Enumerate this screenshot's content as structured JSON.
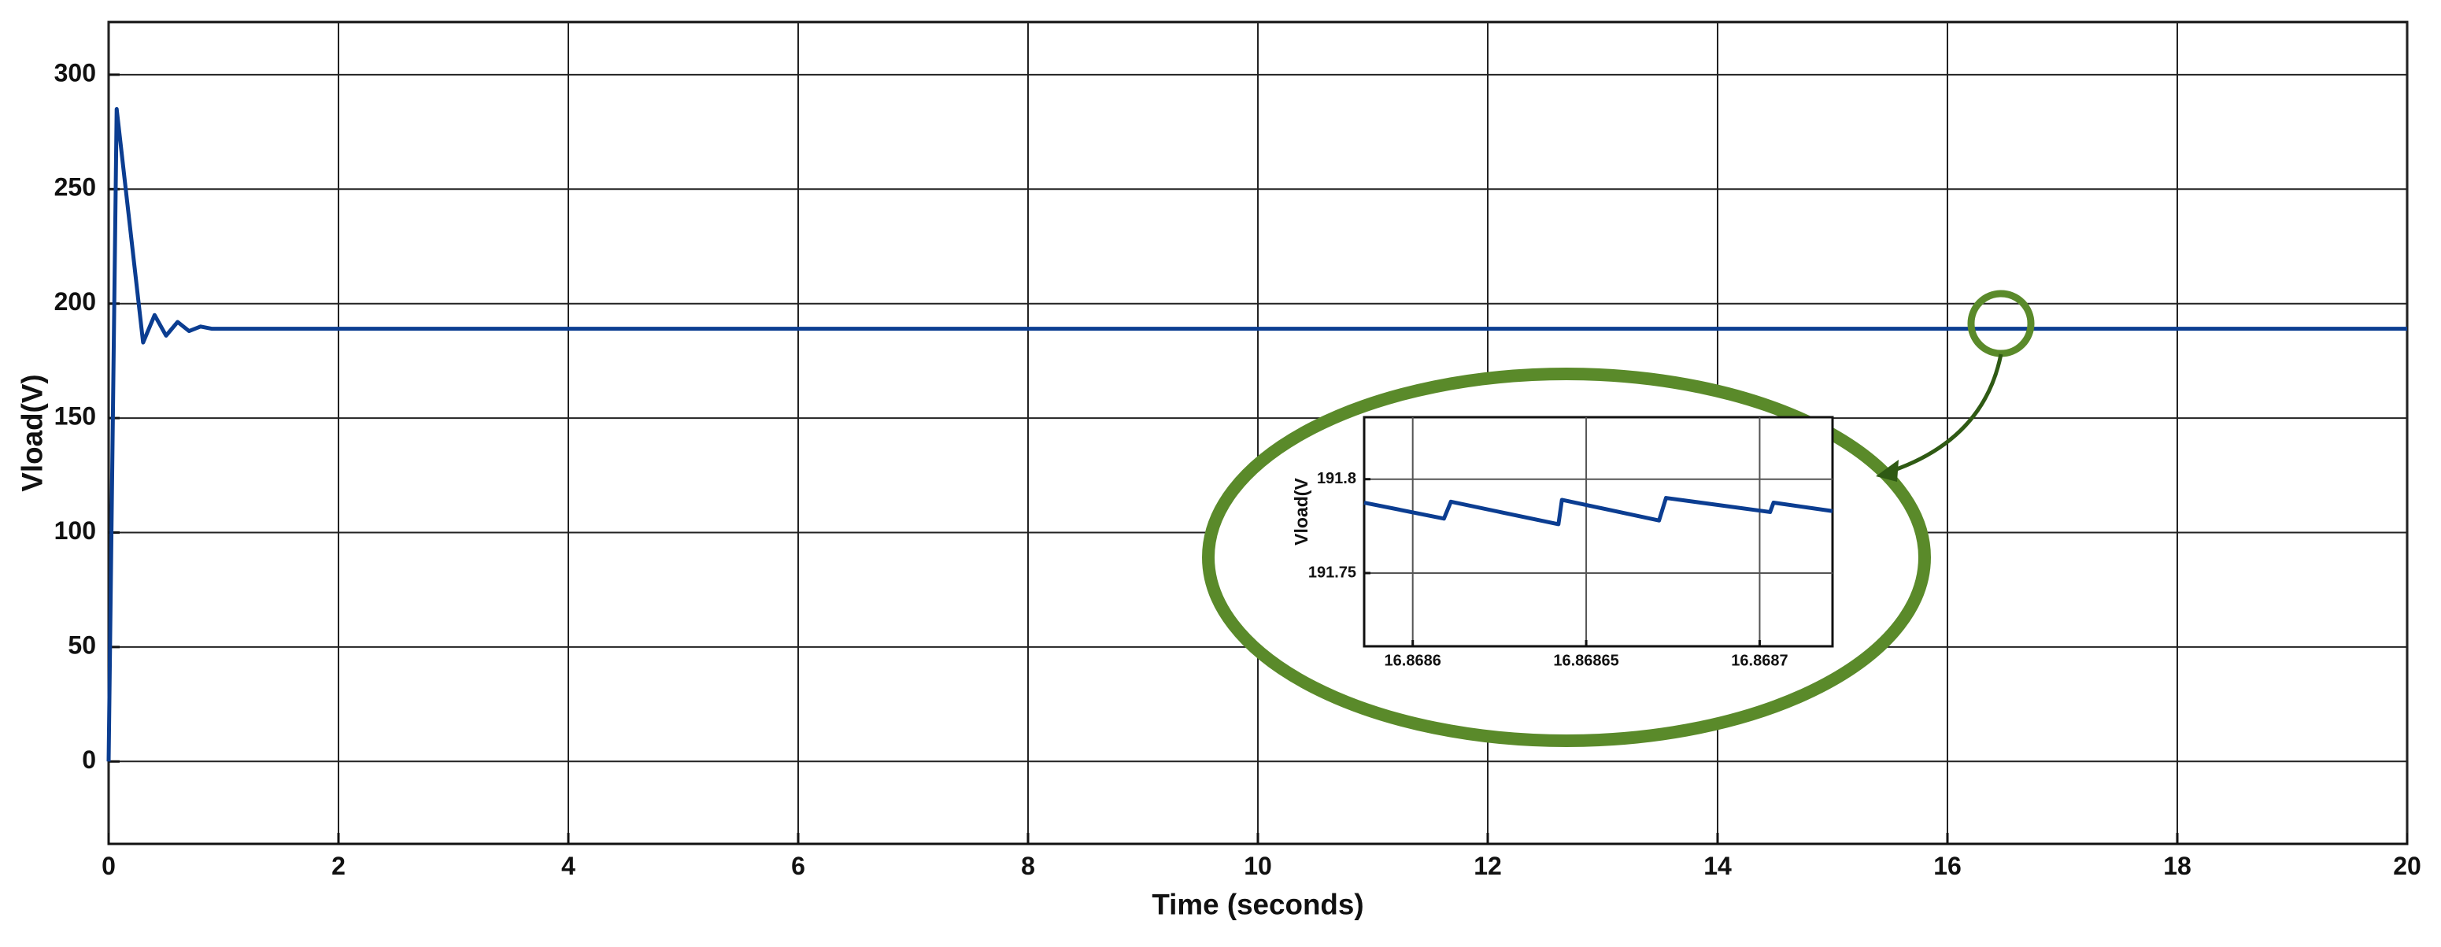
{
  "chart_data": [
    {
      "type": "line",
      "xlabel": "Time (seconds)",
      "ylabel": "Vload(V)",
      "x": [
        0,
        0.07,
        0.3,
        0.4,
        0.5,
        0.6,
        0.7,
        0.8,
        0.9,
        20
      ],
      "values": [
        0,
        285,
        183,
        195,
        186,
        192,
        188,
        190,
        189,
        189
      ],
      "color": "#0b3d91",
      "xlim": [
        0,
        20
      ],
      "xticks": [
        0,
        2,
        4,
        6,
        8,
        10,
        12,
        14,
        16,
        18,
        20
      ],
      "ylim": [
        -36,
        323
      ],
      "yticks": [
        0,
        50,
        100,
        150,
        200,
        250,
        300
      ],
      "grid": true
    },
    {
      "type": "line",
      "ylabel": "Vload(V",
      "x": [
        16.868586,
        16.868609,
        16.868611,
        16.868642,
        16.868643,
        16.868671,
        16.868673,
        16.868703,
        16.868704,
        16.868721
      ],
      "values": [
        191.7875,
        191.779,
        191.788,
        191.776,
        191.789,
        191.778,
        191.79,
        191.7825,
        191.7875,
        191.783
      ],
      "color": "#0b3d91",
      "xlim": [
        16.868586,
        16.868721
      ],
      "xticks": [
        16.8686,
        16.86865,
        16.8687
      ],
      "ylim": [
        191.711,
        191.833
      ],
      "yticks": [
        191.75,
        191.8
      ],
      "grid": true
    }
  ]
}
